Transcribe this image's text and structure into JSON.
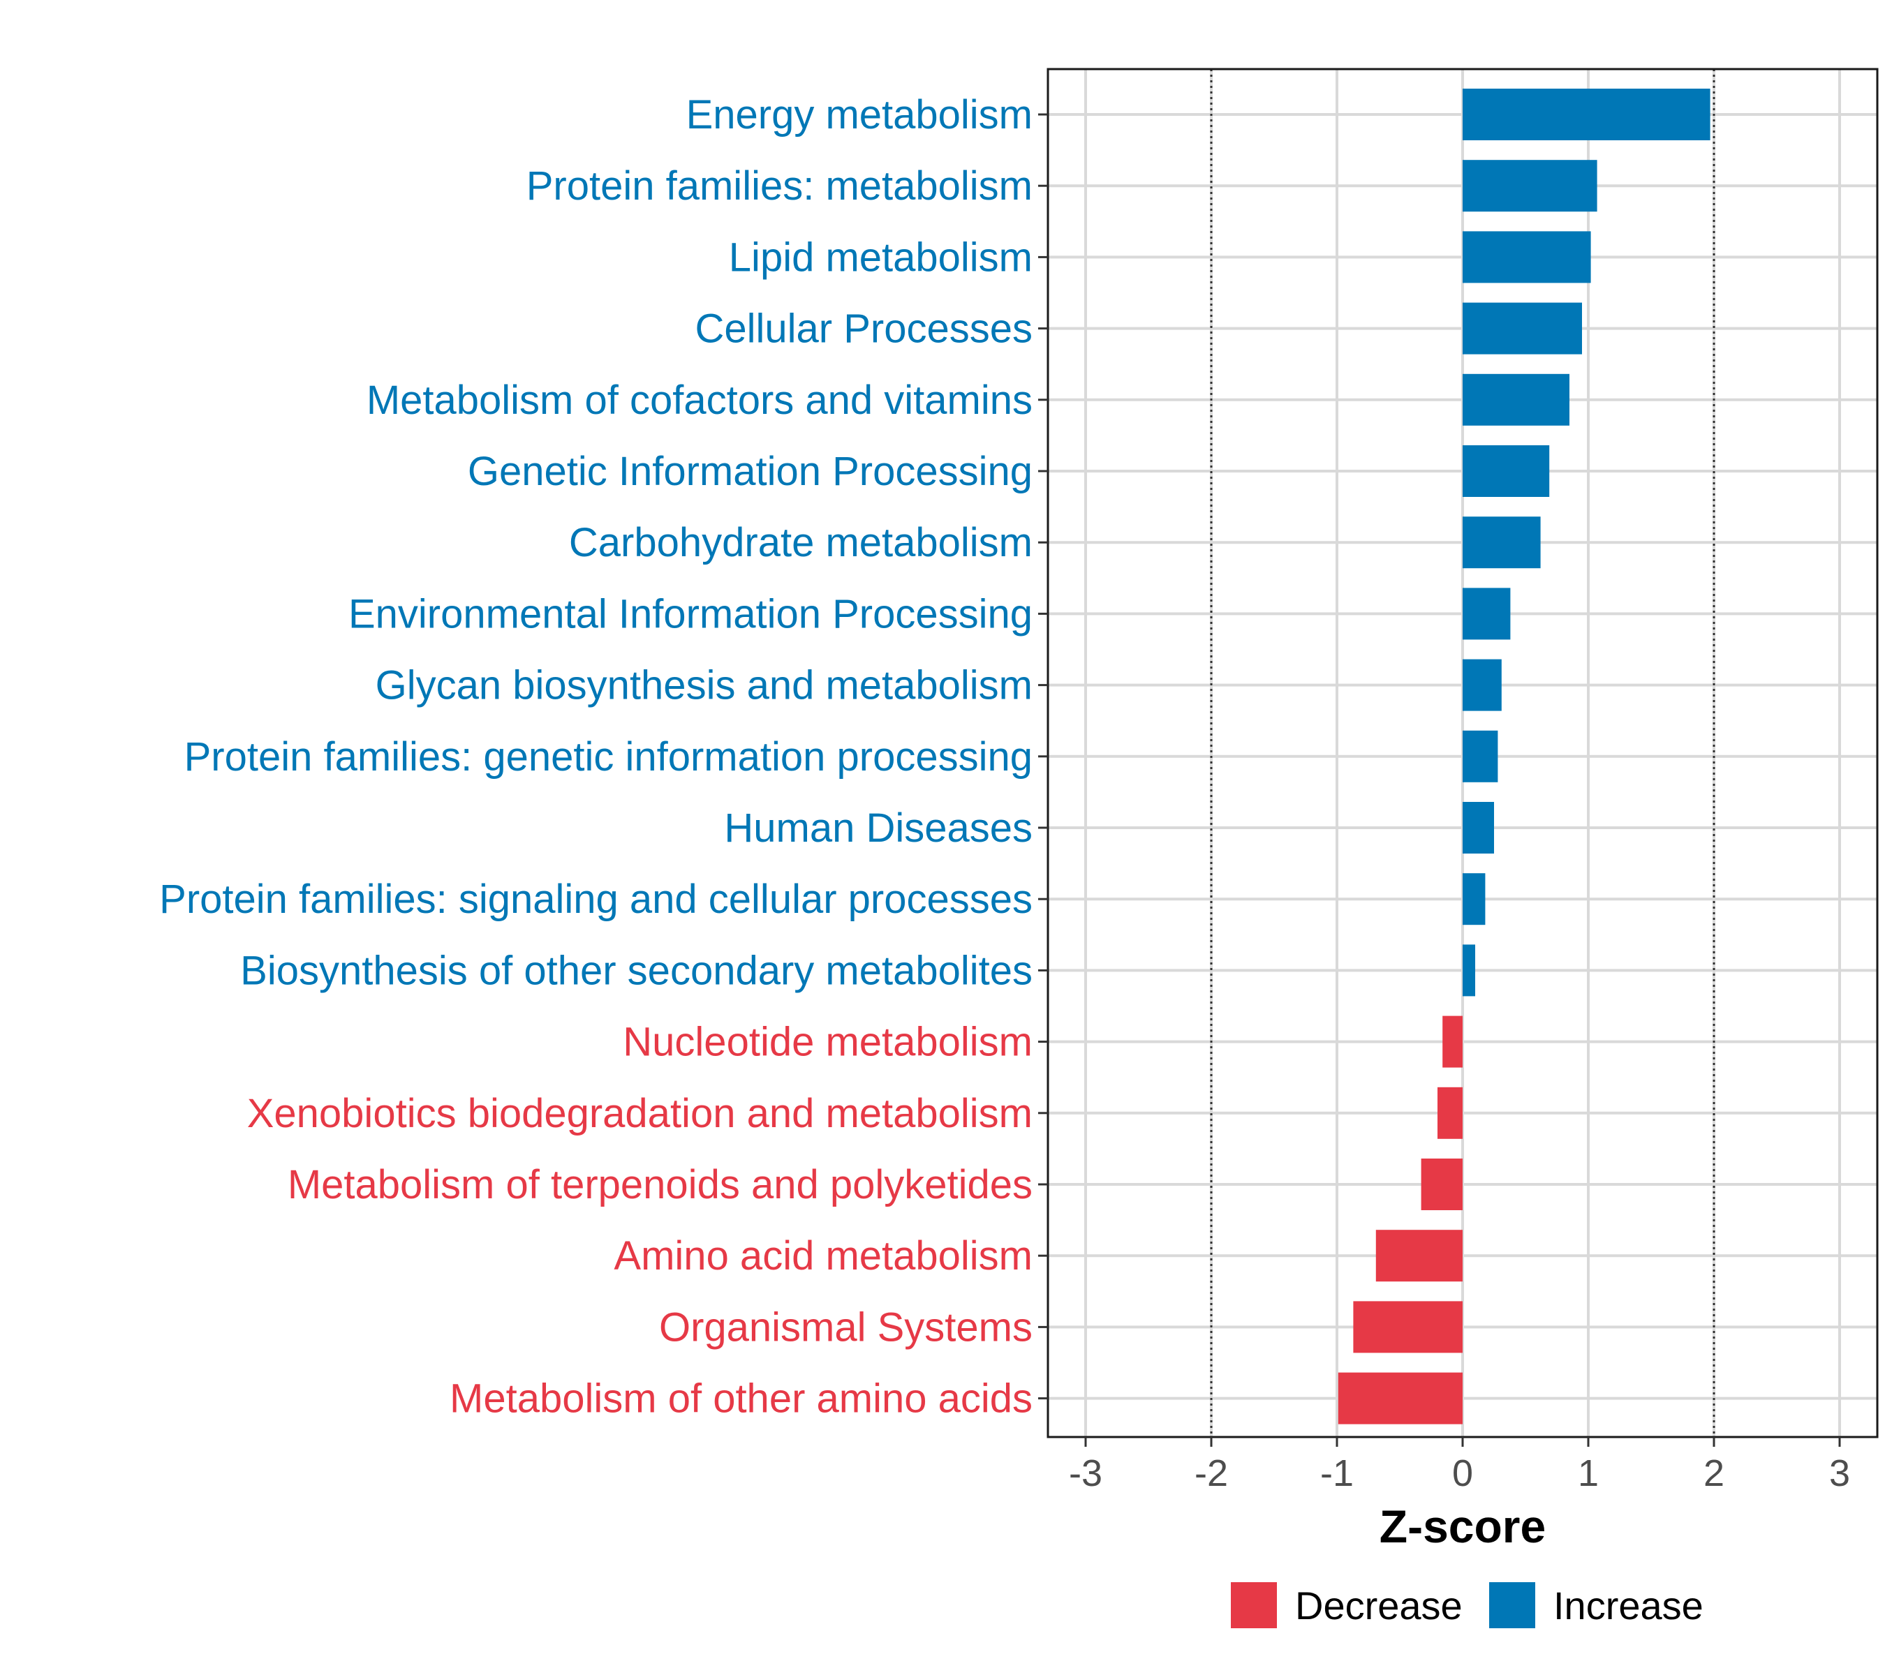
{
  "chart_data": {
    "type": "bar",
    "orientation": "horizontal",
    "title": "",
    "xlabel": "Z-score",
    "ylabel": "",
    "xlim": [
      -3.3,
      3.3
    ],
    "xticks": [
      -3,
      -2,
      -1,
      0,
      1,
      2,
      3
    ],
    "reference_lines": [
      -2,
      2
    ],
    "grid": true,
    "categories": [
      "Energy metabolism",
      "Protein families: metabolism",
      "Lipid metabolism",
      "Cellular Processes",
      "Metabolism of cofactors and vitamins",
      "Genetic Information Processing",
      "Carbohydrate metabolism",
      "Environmental Information Processing",
      "Glycan biosynthesis and metabolism",
      "Protein families: genetic information processing",
      "Human Diseases",
      "Protein families: signaling and cellular processes",
      "Biosynthesis of other secondary metabolites",
      "Nucleotide metabolism",
      "Xenobiotics biodegradation and metabolism",
      "Metabolism of terpenoids and polyketides",
      "Amino acid metabolism",
      "Organismal Systems",
      "Metabolism of other amino acids"
    ],
    "values": [
      1.97,
      1.07,
      1.02,
      0.95,
      0.85,
      0.69,
      0.62,
      0.38,
      0.31,
      0.28,
      0.25,
      0.18,
      0.1,
      -0.16,
      -0.2,
      -0.33,
      -0.69,
      -0.87,
      -0.99
    ],
    "groups": [
      "Increase",
      "Increase",
      "Increase",
      "Increase",
      "Increase",
      "Increase",
      "Increase",
      "Increase",
      "Increase",
      "Increase",
      "Increase",
      "Increase",
      "Increase",
      "Decrease",
      "Decrease",
      "Decrease",
      "Decrease",
      "Decrease",
      "Decrease"
    ],
    "legend": {
      "position": "bottom",
      "entries": [
        {
          "name": "Decrease",
          "color": "#e63946"
        },
        {
          "name": "Increase",
          "color": "#0077b6"
        }
      ]
    },
    "colors": {
      "Decrease": "#e63946",
      "Increase": "#0077b6"
    }
  }
}
